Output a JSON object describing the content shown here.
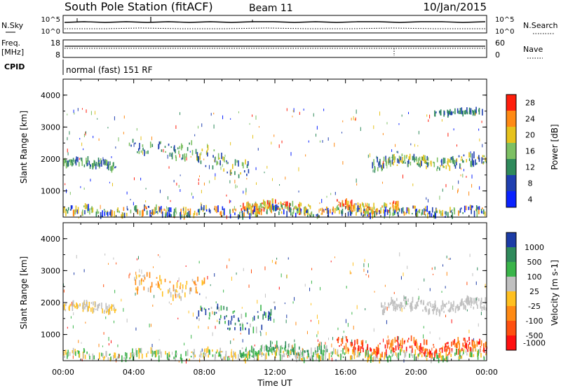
{
  "header": {
    "station": "South Pole Station (fitACF)",
    "beam": "Beam 11",
    "date": "10/Jan/2015"
  },
  "noise_panel": {
    "left_label": "N.Sky",
    "right_label": "N.Search",
    "left_ticks": [
      "10^5",
      "10^0"
    ],
    "right_ticks": [
      "10^5",
      "10^0"
    ]
  },
  "freq_panel": {
    "left_label_1": "Freq.",
    "left_label_2": "[MHz]",
    "right_label": "Nave",
    "left_ticks": [
      "18",
      "8"
    ],
    "right_ticks": [
      "60",
      "0"
    ]
  },
  "cpid_panel": {
    "label": "CPID",
    "text": "normal (fast) 151 RF"
  },
  "chart_data": [
    {
      "type": "heatmap",
      "quantity": "Power",
      "ylabel": "Slant Range [km]",
      "ylim": [
        180,
        4500
      ],
      "yticks": [
        "1000",
        "2000",
        "3000",
        "4000"
      ],
      "xlim": [
        0,
        24
      ],
      "colorbar_label": "Power [dB]",
      "colorbar_ticks": [
        "4",
        "8",
        "12",
        "16",
        "20",
        "24",
        "28"
      ],
      "colorbar_colors": [
        "#0a22ff",
        "#1f3fb0",
        "#2f8a5b",
        "#7dc063",
        "#e6c21c",
        "#ff8a14",
        "#ff1e0c"
      ]
    },
    {
      "type": "heatmap",
      "quantity": "Velocity",
      "ylabel": "Slant Range [km]",
      "ylim": [
        180,
        4500
      ],
      "yticks": [
        "1000",
        "2000",
        "3000",
        "4000"
      ],
      "xlim": [
        0,
        24
      ],
      "colorbar_label": "Velocity [m s-1]",
      "colorbar_ticks": [
        "1000",
        "500",
        "100",
        "25",
        "-25",
        "-100",
        "-500",
        "-1000"
      ],
      "colorbar_colors": [
        "#1c3ca6",
        "#2f8a5b",
        "#3ab54a",
        "#c0c0c0",
        "#ffc020",
        "#ff8a14",
        "#ff5010",
        "#ff1010"
      ]
    }
  ],
  "time_axis": {
    "label": "Time UT",
    "ticks": [
      "00:00",
      "04:00",
      "08:00",
      "12:00",
      "16:00",
      "20:00",
      "00:00"
    ]
  }
}
